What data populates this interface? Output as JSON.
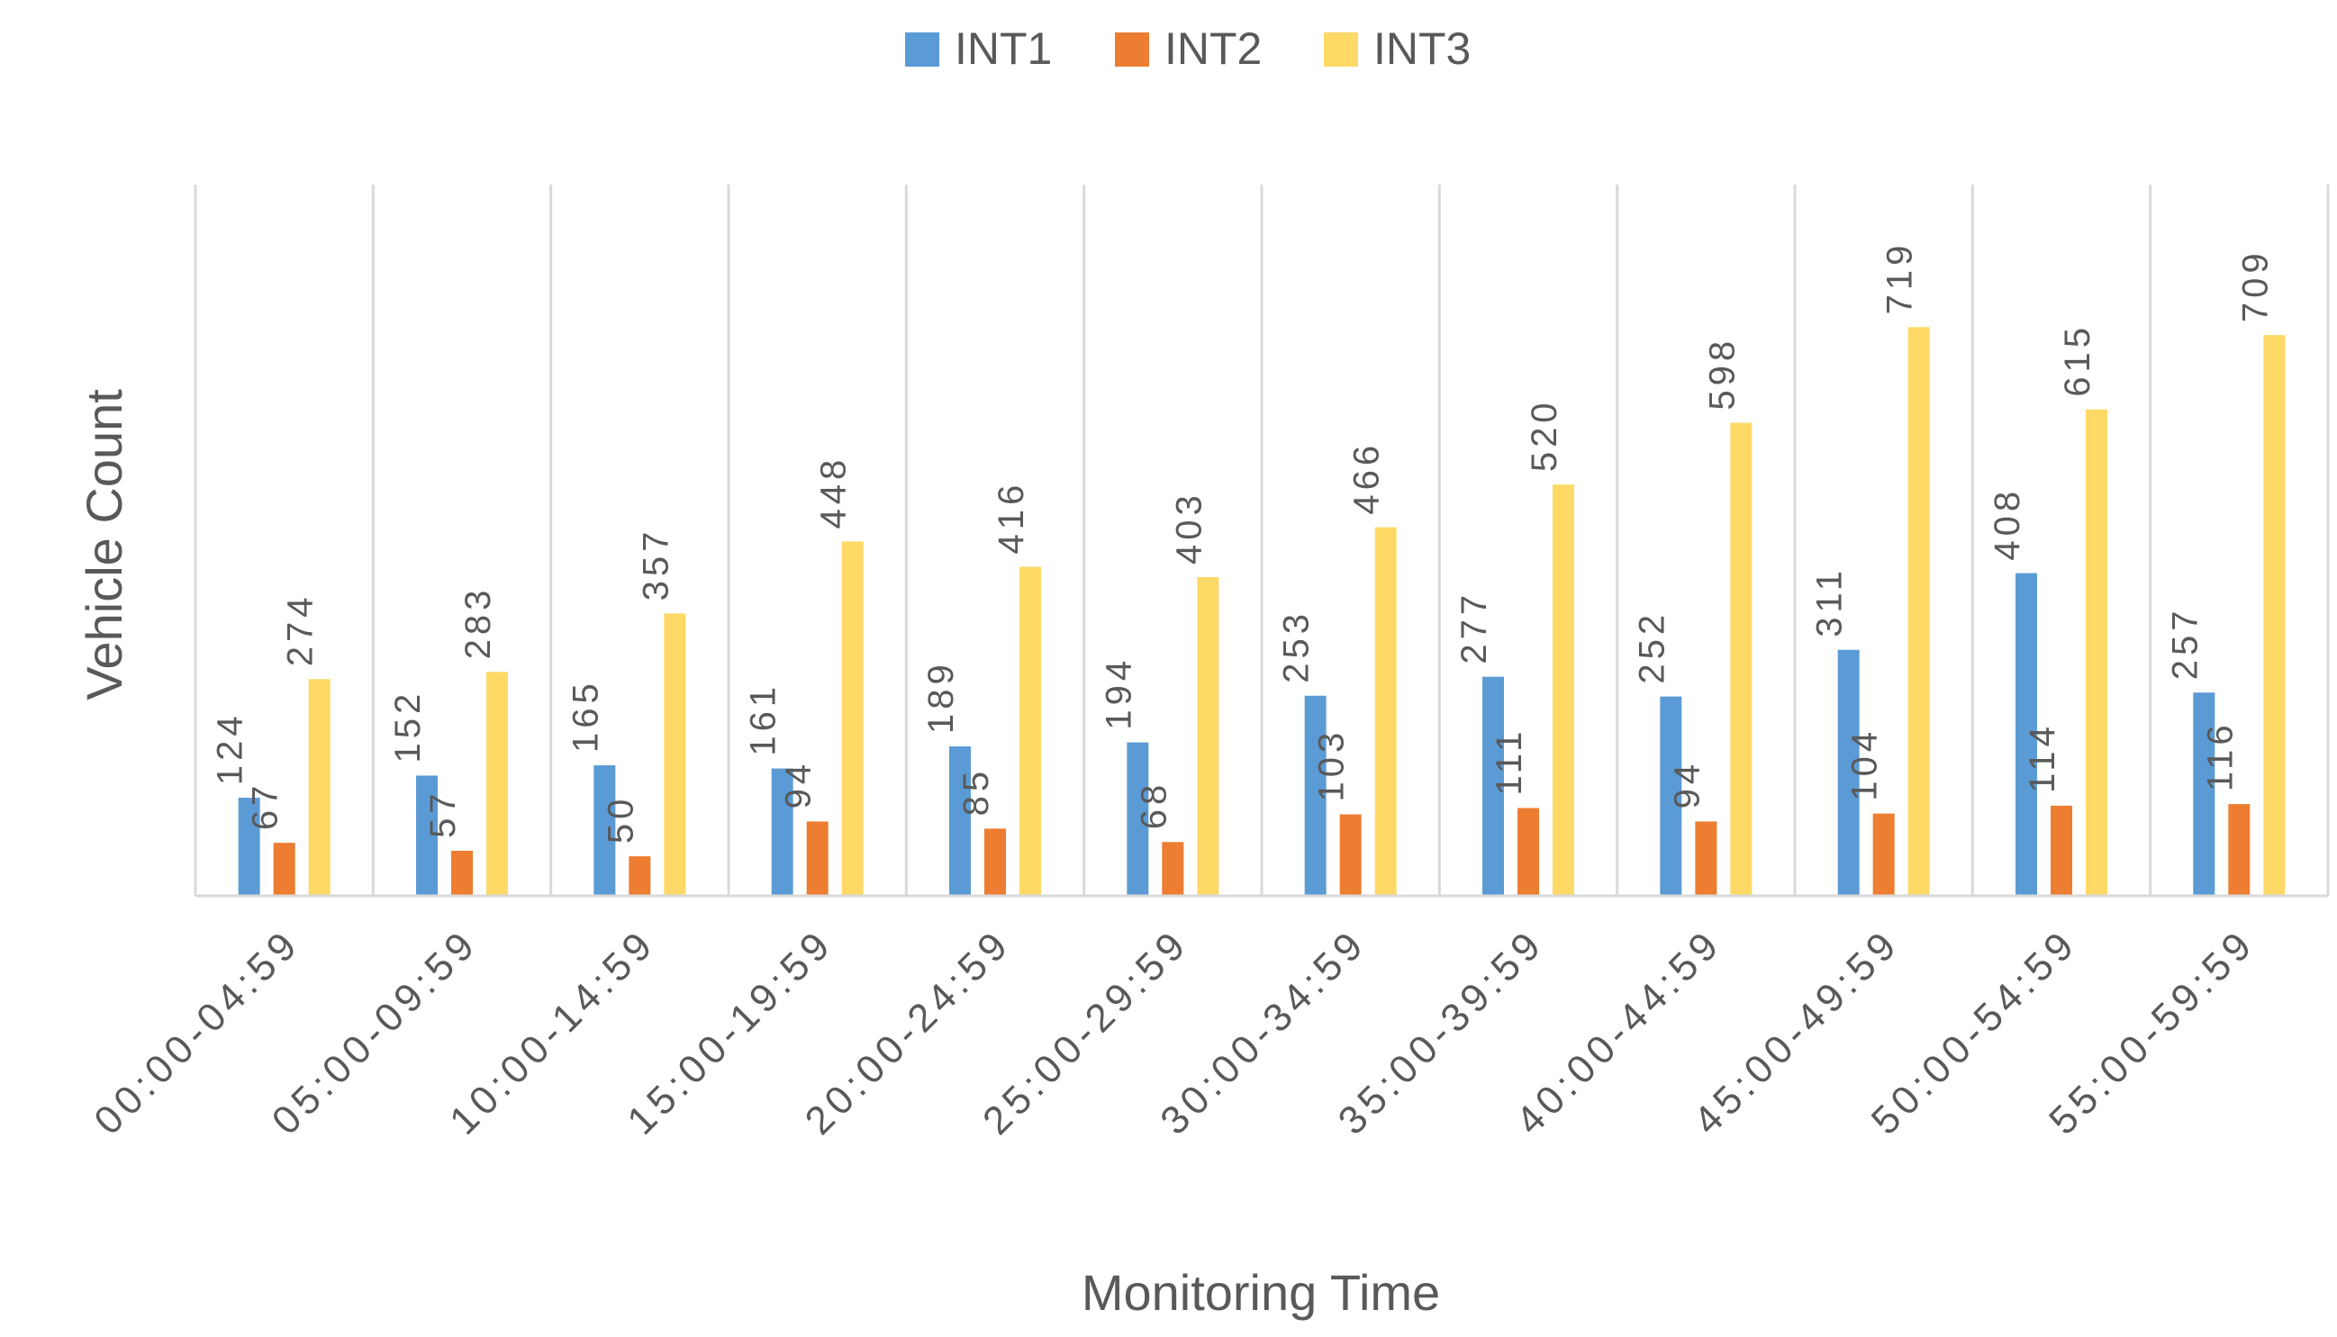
{
  "chart_data": {
    "type": "bar",
    "title": "",
    "xlabel": "Monitoring Time",
    "ylabel": "Vehicle Count",
    "ylim": [
      0,
      800
    ],
    "grid": "vertical-category-separators",
    "legend_position": "top-center",
    "categories": [
      "00:00-04:59",
      "05:00-09:59",
      "10:00-14:59",
      "15:00-19:59",
      "20:00-24:59",
      "25:00-29:59",
      "30:00-34:59",
      "35:00-39:59",
      "40:00-44:59",
      "45:00-49:59",
      "50:00-54:59",
      "55:00-59:59"
    ],
    "series": [
      {
        "name": "INT1",
        "color": "#5B9BD5",
        "values": [
          124,
          152,
          165,
          161,
          189,
          194,
          253,
          277,
          252,
          311,
          408,
          257
        ]
      },
      {
        "name": "INT2",
        "color": "#ED7D31",
        "values": [
          67,
          57,
          50,
          94,
          85,
          68,
          103,
          111,
          94,
          104,
          114,
          116
        ]
      },
      {
        "name": "INT3",
        "color": "#FFD966",
        "values": [
          274,
          283,
          357,
          448,
          416,
          403,
          466,
          520,
          598,
          719,
          615,
          709
        ]
      }
    ]
  }
}
